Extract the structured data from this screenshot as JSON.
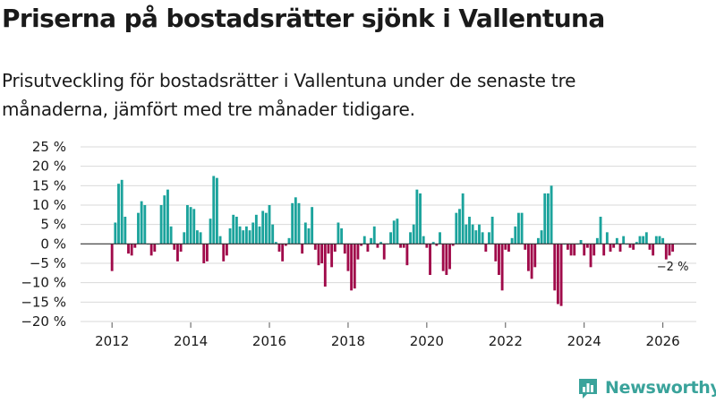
{
  "colors": {
    "positive": "#1ba39c",
    "negative": "#a00a4a",
    "brand": "#3aa39b",
    "grid": "#d9d9d9",
    "axis": "#333333"
  },
  "brand": {
    "name": "Newsworthy",
    "icon": "bar-chart-logo-icon"
  },
  "chart_data": {
    "type": "bar",
    "title": "Priserna på bostadsrätter sjönk i Vallentuna",
    "subtitle": "Prisutveckling för bostadsrätter i Vallentuna under de senaste tre månaderna, jämfört med tre månader tidigare.",
    "xlabel": "",
    "ylabel": "",
    "ylim": [
      -20,
      25
    ],
    "y_ticks": [
      25,
      20,
      15,
      10,
      5,
      0,
      -5,
      -10,
      -15,
      -20
    ],
    "y_tick_labels": [
      "25 %",
      "20 %",
      "15 %",
      "10 %",
      "5 %",
      "0 %",
      "−5 %",
      "−10 %",
      "−15 %",
      "−20 %"
    ],
    "x_ticks": [
      2012,
      2014,
      2016,
      2018,
      2020,
      2022,
      2024,
      2026
    ],
    "x_tick_labels": [
      "2012",
      "2014",
      "2016",
      "2018",
      "2020",
      "2022",
      "2024",
      "2026"
    ],
    "xlim": [
      2011.2,
      2026.85
    ],
    "start_year": 2012.0,
    "step": 0.0833333,
    "last_value_label": "−2 %",
    "values": [
      -7,
      5.5,
      15.5,
      16.5,
      7,
      -2.5,
      -3,
      -1,
      8,
      11,
      10,
      0,
      -3,
      -2,
      0,
      10,
      12.5,
      14,
      4.5,
      -1.5,
      -4.5,
      -2,
      3,
      10,
      9.5,
      9,
      3.5,
      3,
      -5,
      -4.5,
      6.5,
      17.5,
      17,
      2,
      -4.5,
      -3,
      4,
      7.5,
      7,
      4.5,
      3.5,
      4.5,
      3.5,
      5.5,
      7.5,
      4.5,
      8.5,
      8,
      10,
      5,
      0.5,
      -2,
      -4.5,
      -0.5,
      1.5,
      10.5,
      12,
      10.5,
      -2.5,
      5.5,
      4,
      9.5,
      -1.5,
      -5.5,
      -5,
      -11,
      -2.5,
      -6,
      -2,
      5.5,
      4,
      -2.5,
      -7,
      -12,
      -11.5,
      -4,
      -0.5,
      2,
      -2,
      1.5,
      4.5,
      -1,
      0.5,
      -4,
      0,
      3,
      6,
      6.5,
      -1,
      -1,
      -5.5,
      3,
      5,
      14,
      13,
      2,
      -1,
      -8,
      0.5,
      -0.5,
      3,
      -7,
      -8,
      -6.5,
      -0.5,
      8,
      9,
      13,
      5,
      7,
      5,
      3.5,
      5,
      3,
      -2,
      3,
      7,
      -4.5,
      -8,
      -12,
      -1.5,
      -2,
      1.5,
      4.5,
      8,
      8,
      -1.5,
      -7,
      -9,
      -6,
      1.5,
      3.5,
      13,
      13,
      15,
      -12,
      -15.5,
      -16,
      0,
      -1.5,
      -3,
      -3,
      0,
      1,
      -3,
      -1,
      -6,
      -3,
      1.5,
      7,
      -3,
      3,
      -2,
      -1,
      1.5,
      -2,
      2,
      0,
      -1,
      -1.5,
      0.5,
      2,
      2,
      3,
      -1.5,
      -3,
      2,
      2,
      1.5,
      -4,
      -3,
      -2
    ]
  }
}
